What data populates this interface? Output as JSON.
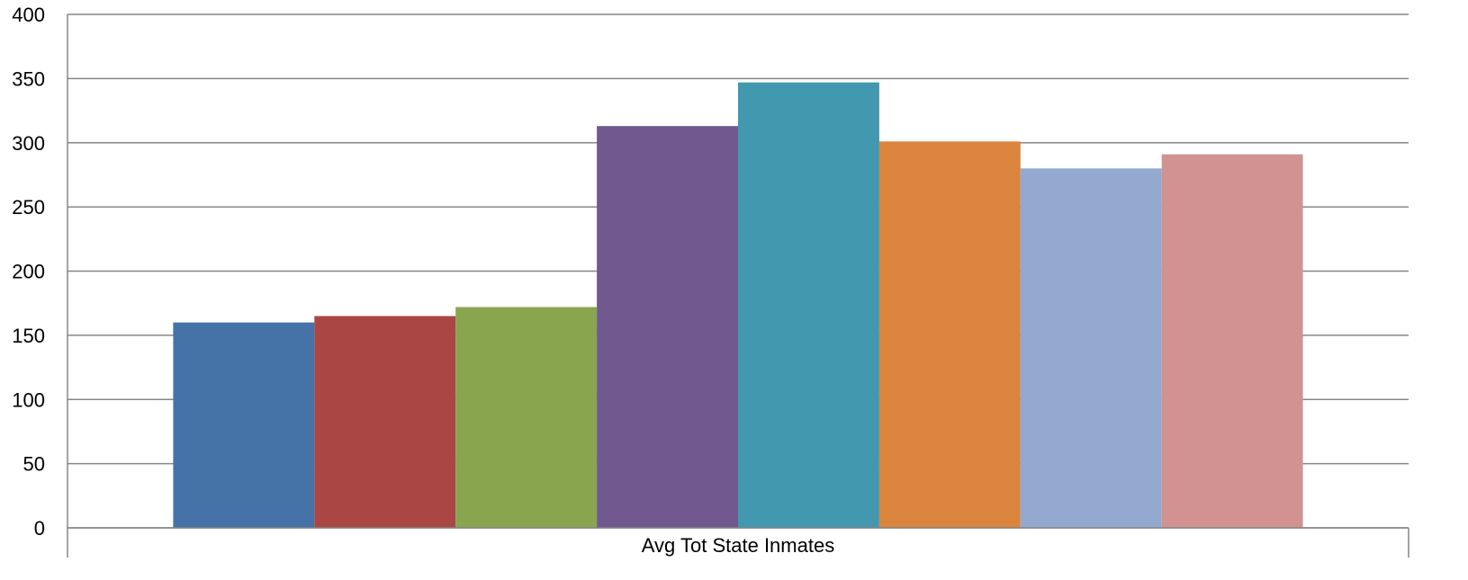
{
  "chart_data": {
    "type": "bar",
    "categories": [
      "Avg Tot State Inmates"
    ],
    "series": [
      {
        "values": [
          160
        ],
        "color": "#4572A7"
      },
      {
        "values": [
          165
        ],
        "color": "#AA4643"
      },
      {
        "values": [
          172
        ],
        "color": "#89A54E"
      },
      {
        "values": [
          313
        ],
        "color": "#71588F"
      },
      {
        "values": [
          347
        ],
        "color": "#4198AF"
      },
      {
        "values": [
          301
        ],
        "color": "#DB843D"
      },
      {
        "values": [
          280
        ],
        "color": "#93A9CF"
      },
      {
        "values": [
          291
        ],
        "color": "#D19392"
      }
    ],
    "ylim": [
      0,
      400
    ],
    "yticks": [
      "0",
      "50",
      "100",
      "150",
      "200",
      "250",
      "300",
      "350",
      "400"
    ],
    "grid": true,
    "legend": "none"
  }
}
